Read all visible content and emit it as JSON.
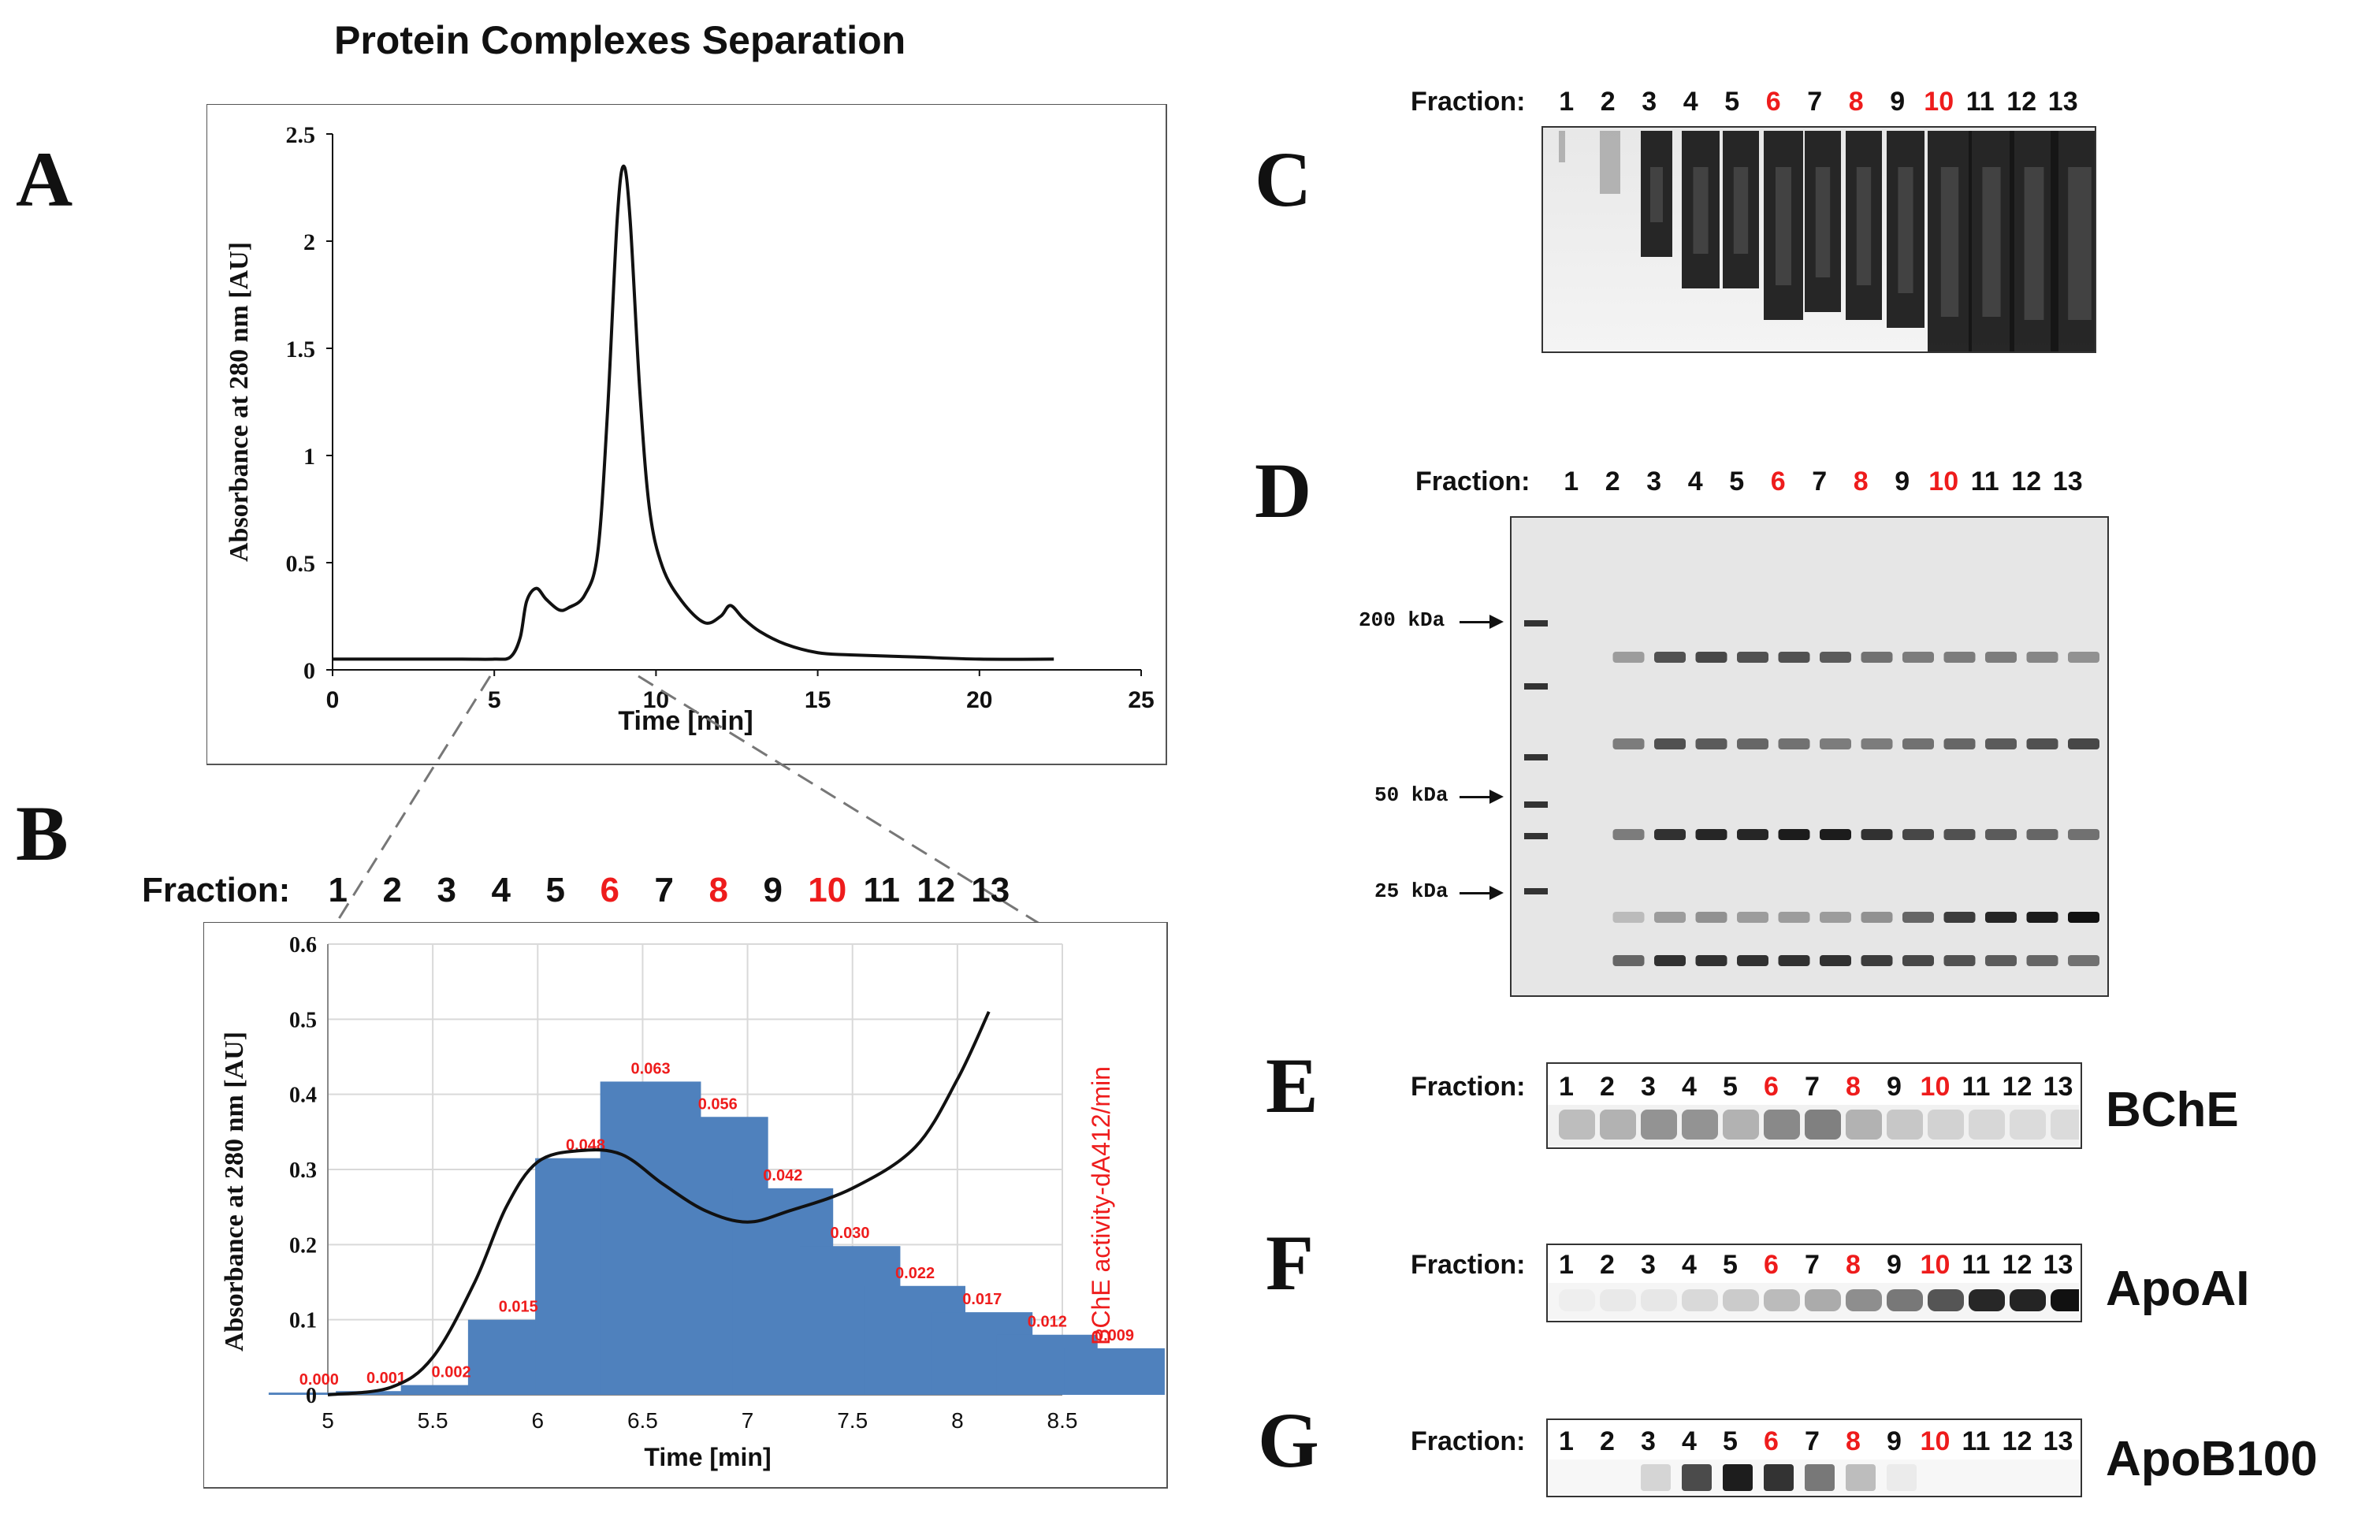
{
  "figure": {
    "title": "Protein Complexes Separation",
    "panels": {
      "a": "A",
      "b": "B",
      "c": "C",
      "d": "D",
      "e": "E",
      "f": "F",
      "g": "G"
    }
  },
  "fraction_label": "Fraction:",
  "fractions": [
    "1",
    "2",
    "3",
    "4",
    "5",
    "6",
    "7",
    "8",
    "9",
    "10",
    "11",
    "12",
    "13"
  ],
  "highlight_fractions": [
    "6",
    "8",
    "10"
  ],
  "colors": {
    "highlight": "#ee1c1c",
    "bar": "#4f81bd",
    "line": "#111111"
  },
  "chart_data": [
    {
      "id": "panel-a",
      "type": "line",
      "title": "",
      "xlabel": "Time [min]",
      "ylabel": "Absorbance  at 280 nm [AU]",
      "xlim": [
        0,
        25
      ],
      "ylim": [
        0,
        2.5
      ],
      "xticks": [
        "0",
        "5",
        "10",
        "15",
        "20",
        "25"
      ],
      "yticks": [
        "0",
        "0.5",
        "1",
        "1.5",
        "2",
        "2.5"
      ],
      "series": [
        {
          "name": "A280",
          "x": [
            0,
            2,
            4,
            5,
            5.5,
            5.8,
            6.0,
            6.3,
            6.6,
            7.0,
            7.3,
            7.8,
            8.2,
            8.5,
            8.8,
            9.0,
            9.2,
            9.5,
            9.8,
            10.2,
            10.8,
            11.5,
            12.0,
            12.3,
            12.7,
            13.2,
            14,
            15,
            16,
            18,
            20,
            22.3
          ],
          "y": [
            0.05,
            0.05,
            0.05,
            0.05,
            0.06,
            0.15,
            0.32,
            0.38,
            0.33,
            0.28,
            0.29,
            0.35,
            0.55,
            1.2,
            2.1,
            2.35,
            2.1,
            1.3,
            0.75,
            0.48,
            0.32,
            0.22,
            0.25,
            0.3,
            0.24,
            0.18,
            0.12,
            0.08,
            0.07,
            0.06,
            0.05,
            0.05
          ]
        }
      ]
    },
    {
      "id": "panel-b",
      "type": "bar",
      "xlabel": "Time [min]",
      "ylabel": "Absorbance  at 280 nm [AU]",
      "ylabel_right": "BChE activity-dA412/min",
      "xlim": [
        5,
        8.5
      ],
      "ylim": [
        0,
        0.6
      ],
      "xticks": [
        "5",
        "5.5",
        "6",
        "6.5",
        "7",
        "7.5",
        "8",
        "8.5"
      ],
      "yticks": [
        "0",
        "0.1",
        "0.2",
        "0.3",
        "0.4",
        "0.5",
        "0.6"
      ],
      "bar_x": [
        5.15,
        5.47,
        5.78,
        6.1,
        6.42,
        6.73,
        7.05,
        7.36,
        7.68,
        7.99,
        8.31,
        8.62,
        8.94
      ],
      "bar_values": [
        0.003,
        0.005,
        0.013,
        0.1,
        0.315,
        0.417,
        0.37,
        0.275,
        0.198,
        0.145,
        0.11,
        0.08,
        0.062
      ],
      "bar_labels": [
        "0.000",
        "0.001",
        "0.002",
        "0.015",
        "0.048",
        "0.063",
        "0.056",
        "0.042",
        "0.030",
        "0.022",
        "0.017",
        "0.012",
        "0.009"
      ],
      "line": {
        "x": [
          5.0,
          5.3,
          5.5,
          5.7,
          5.85,
          6.0,
          6.2,
          6.4,
          6.6,
          6.8,
          7.0,
          7.2,
          7.5,
          7.8,
          8.0,
          8.15
        ],
        "y": [
          0.0,
          0.01,
          0.05,
          0.15,
          0.25,
          0.31,
          0.325,
          0.32,
          0.28,
          0.245,
          0.23,
          0.245,
          0.275,
          0.33,
          0.42,
          0.51
        ]
      }
    }
  ],
  "gel_d": {
    "markers": [
      "200 kDa",
      "50 kDa",
      "25 kDa"
    ]
  },
  "proteins": {
    "e": "BChE",
    "f": "ApoAI",
    "g": "ApoB100"
  }
}
